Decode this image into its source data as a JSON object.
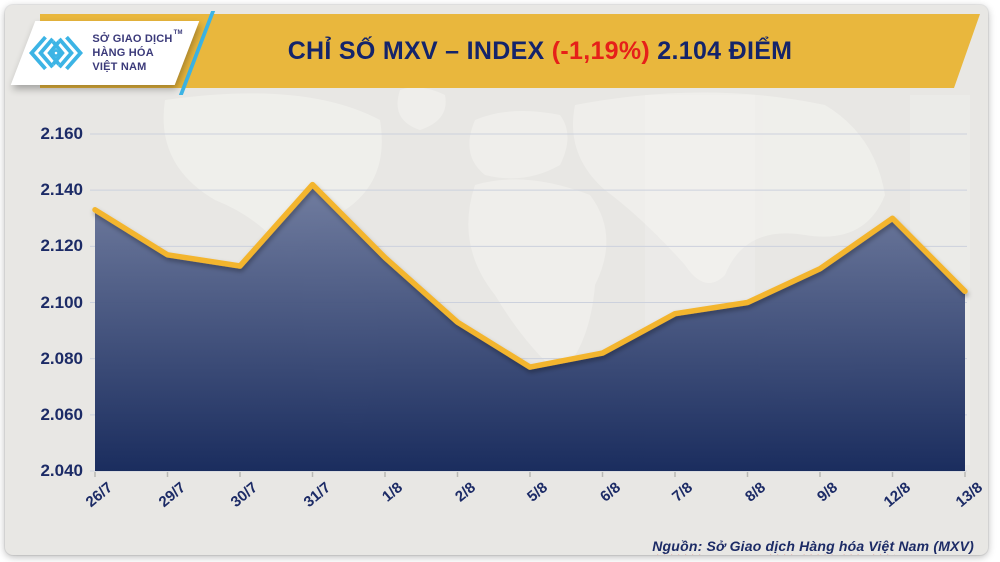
{
  "header": {
    "logo": {
      "lines": [
        "SỞ GIAO DỊCH",
        "HÀNG HÓA",
        "VIỆT NAM"
      ],
      "trademark": "TM"
    },
    "title": {
      "prefix": "CHỈ SỐ MXV – INDEX ",
      "change": "(-1,19%)",
      "suffix": " 2.104 ĐIỂM"
    }
  },
  "chart_data": {
    "type": "area",
    "title": "CHỈ SỐ MXV – INDEX (-1,19%) 2.104 ĐIỂM",
    "categories": [
      "26/7",
      "29/7",
      "30/7",
      "31/7",
      "1/8",
      "2/8",
      "5/8",
      "6/8",
      "7/8",
      "8/8",
      "9/8",
      "12/8",
      "13/8"
    ],
    "values": [
      2133,
      2117,
      2113,
      2142,
      2116,
      2093,
      2077,
      2082,
      2096,
      2100,
      2112,
      2130,
      2104
    ],
    "last_value_label": "2.104",
    "change_percent": "-1,19%",
    "xlabel": "",
    "ylabel": "",
    "ylim": [
      2040,
      2160
    ],
    "ytick_values": [
      2160,
      2140,
      2120,
      2100,
      2080,
      2060,
      2040
    ],
    "ytick_labels": [
      "2.160",
      "2.140",
      "2.120",
      "2.100",
      "2.080",
      "2.060",
      "2.040"
    ],
    "grid": true,
    "legend": false
  },
  "source": {
    "text": "Nguồn: Sở Giao dịch Hàng hóa Việt Nam (MXV)",
    "words": [
      {
        "text": "Nguồn:",
        "misspelled": true
      },
      {
        "text": "Sở",
        "misspelled": false
      },
      {
        "text": "Giao",
        "misspelled": false
      },
      {
        "text": "dịch",
        "misspelled": true
      },
      {
        "text": "Hàng",
        "misspelled": true
      },
      {
        "text": "hóa",
        "misspelled": true
      },
      {
        "text": "Việt",
        "misspelled": true
      },
      {
        "text": "Nam",
        "misspelled": false
      },
      {
        "text": "(MXV)",
        "misspelled": false
      }
    ]
  },
  "colors": {
    "background": "#e8e7e4",
    "banner_gold": "#e9b73d",
    "title_navy": "#14246b",
    "negative_red": "#e62019",
    "line_gold": "#f3b52e",
    "area_top": "#7d88a9",
    "area_bottom": "#14275a",
    "grid": "#ccd1dd",
    "label_navy": "#1c2b66",
    "logo_blue": "#3cb4e5",
    "logo_text_navy": "#3b3a7a",
    "map_watermark": "#f2f1ee"
  }
}
